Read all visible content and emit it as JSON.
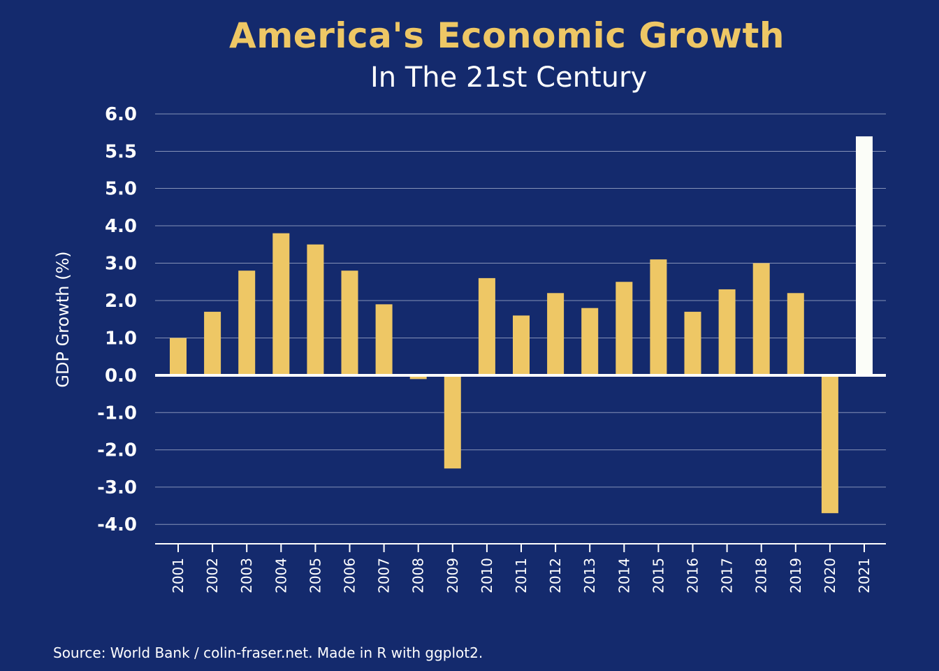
{
  "title": "America's Economic Growth",
  "subtitle": "In The 21st Century",
  "caption": "Source: World Bank / colin-fraser.net. Made in R with ggplot2.",
  "colors": {
    "background": "#142a6d",
    "bar": "#eec765",
    "highlight_bar": "#fbfdf8",
    "gridline": "#8592b8",
    "axis": "#ffffff"
  },
  "chart_data": {
    "type": "bar",
    "title": "America's Economic Growth",
    "subtitle": "In The 21st Century",
    "xlabel": "",
    "ylabel": "GDP Growth (%)",
    "ylim": [
      -4.5,
      6.2
    ],
    "yticks": [
      6.0,
      5.5,
      5.0,
      4.0,
      3.0,
      2.0,
      1.0,
      0.0,
      -1.0,
      -2.0,
      -3.0,
      -4.0
    ],
    "ytick_labels": [
      "6.0",
      "5.5",
      "5.0",
      "4.0",
      "3.0",
      "2.0",
      "1.0",
      "0.0",
      "-1.0",
      "-2.0",
      "-3.0",
      "-4.0"
    ],
    "grid": true,
    "legend": "none",
    "categories": [
      "2001",
      "2002",
      "2003",
      "2004",
      "2005",
      "2006",
      "2007",
      "2008",
      "2009",
      "2010",
      "2011",
      "2012",
      "2013",
      "2014",
      "2015",
      "2016",
      "2017",
      "2018",
      "2019",
      "2020",
      "2021"
    ],
    "values": [
      1.0,
      1.7,
      2.8,
      3.8,
      3.5,
      2.8,
      1.9,
      -0.1,
      -2.5,
      2.6,
      1.6,
      2.2,
      1.8,
      2.5,
      3.1,
      1.7,
      2.3,
      3.0,
      2.2,
      -3.7,
      5.7
    ],
    "highlight_category": "2021"
  }
}
